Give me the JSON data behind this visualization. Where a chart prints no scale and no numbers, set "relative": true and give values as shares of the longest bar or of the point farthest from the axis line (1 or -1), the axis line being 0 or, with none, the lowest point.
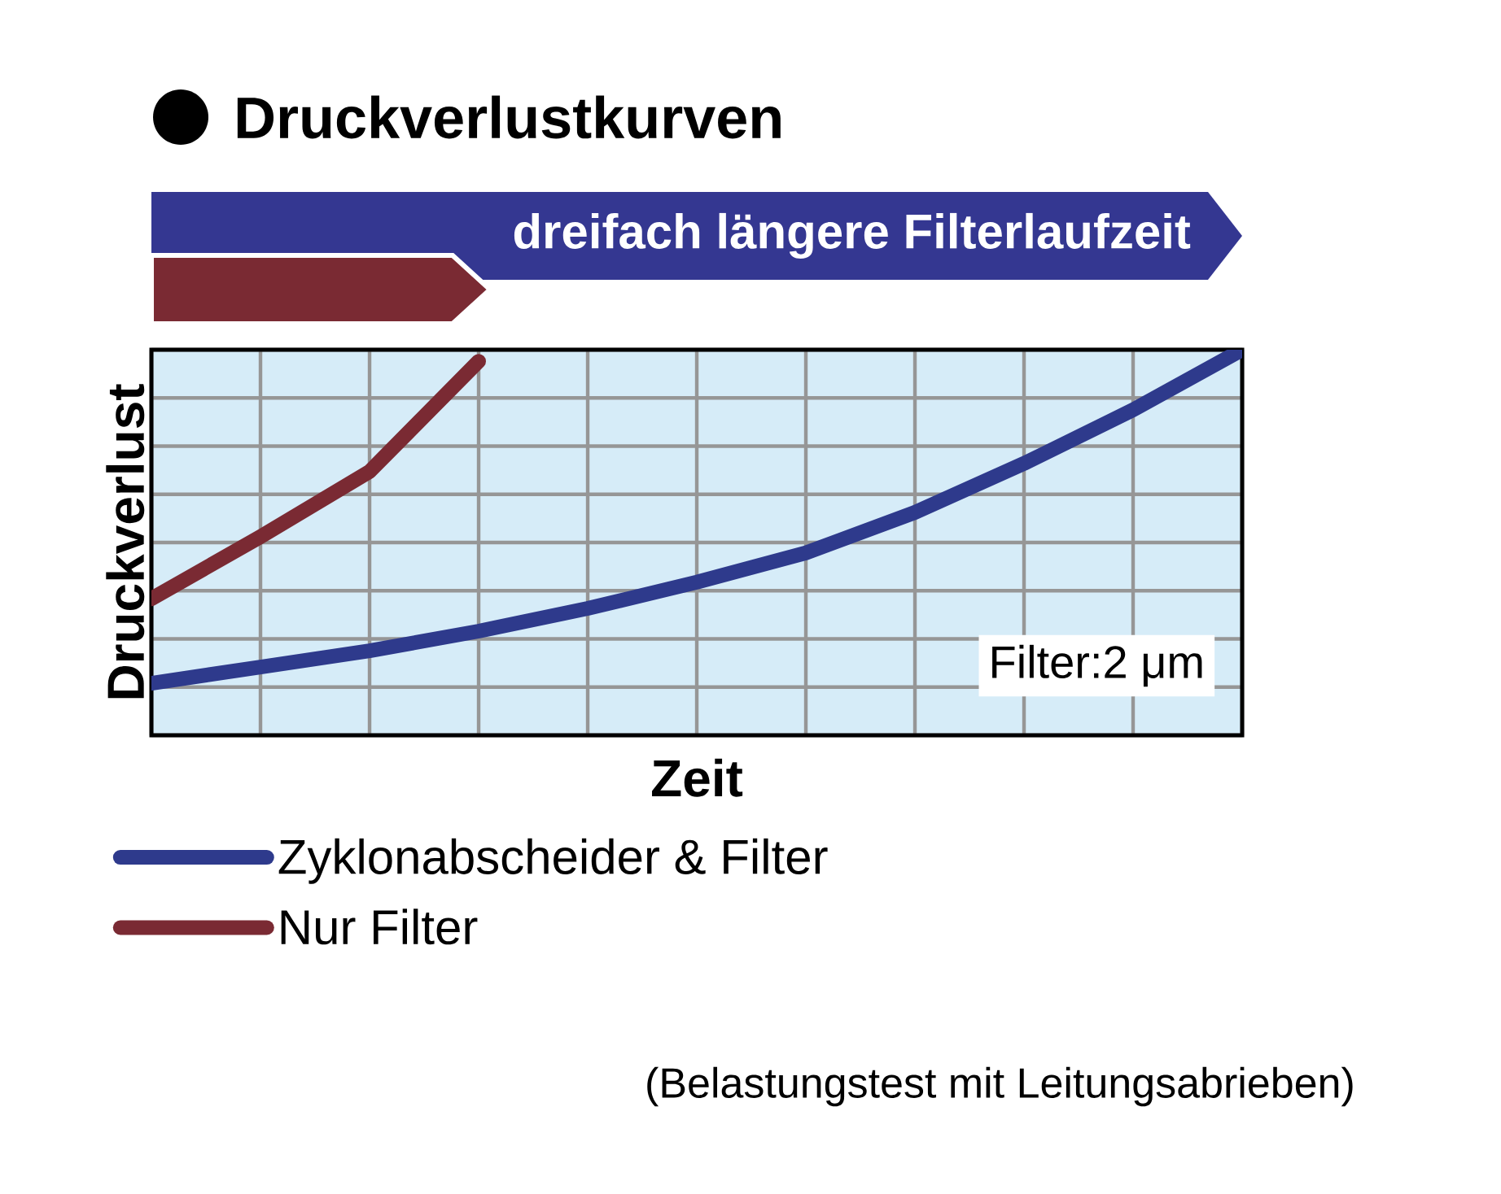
{
  "chart_data": {
    "type": "line",
    "title": "Druckverlustkurven",
    "xlabel": "Zeit",
    "ylabel": "Druckverlust",
    "relative": true,
    "grid": true,
    "legend": "bottom",
    "categories": [
      null,
      null,
      null,
      null,
      null,
      null,
      null,
      null,
      null,
      null,
      null
    ],
    "series": [
      {
        "name": "Zyklonabscheider & Filter",
        "color": "#2e3a8c",
        "values": [
          0.135,
          0.177,
          0.219,
          0.27,
          0.329,
          0.397,
          0.473,
          0.578,
          0.705,
          0.844,
          1.0
        ]
      },
      {
        "name": "Nur Filter",
        "color": "#7a2a33",
        "values": [
          0.354,
          0.515,
          0.684,
          0.97,
          null,
          null,
          null,
          null,
          null,
          null,
          null
        ]
      }
    ],
    "annotations": [
      "dreifach längere Filterlaufzeit",
      "Filter:2 μm",
      "(Belastungstest mit Leitungsabrieben)"
    ]
  }
}
